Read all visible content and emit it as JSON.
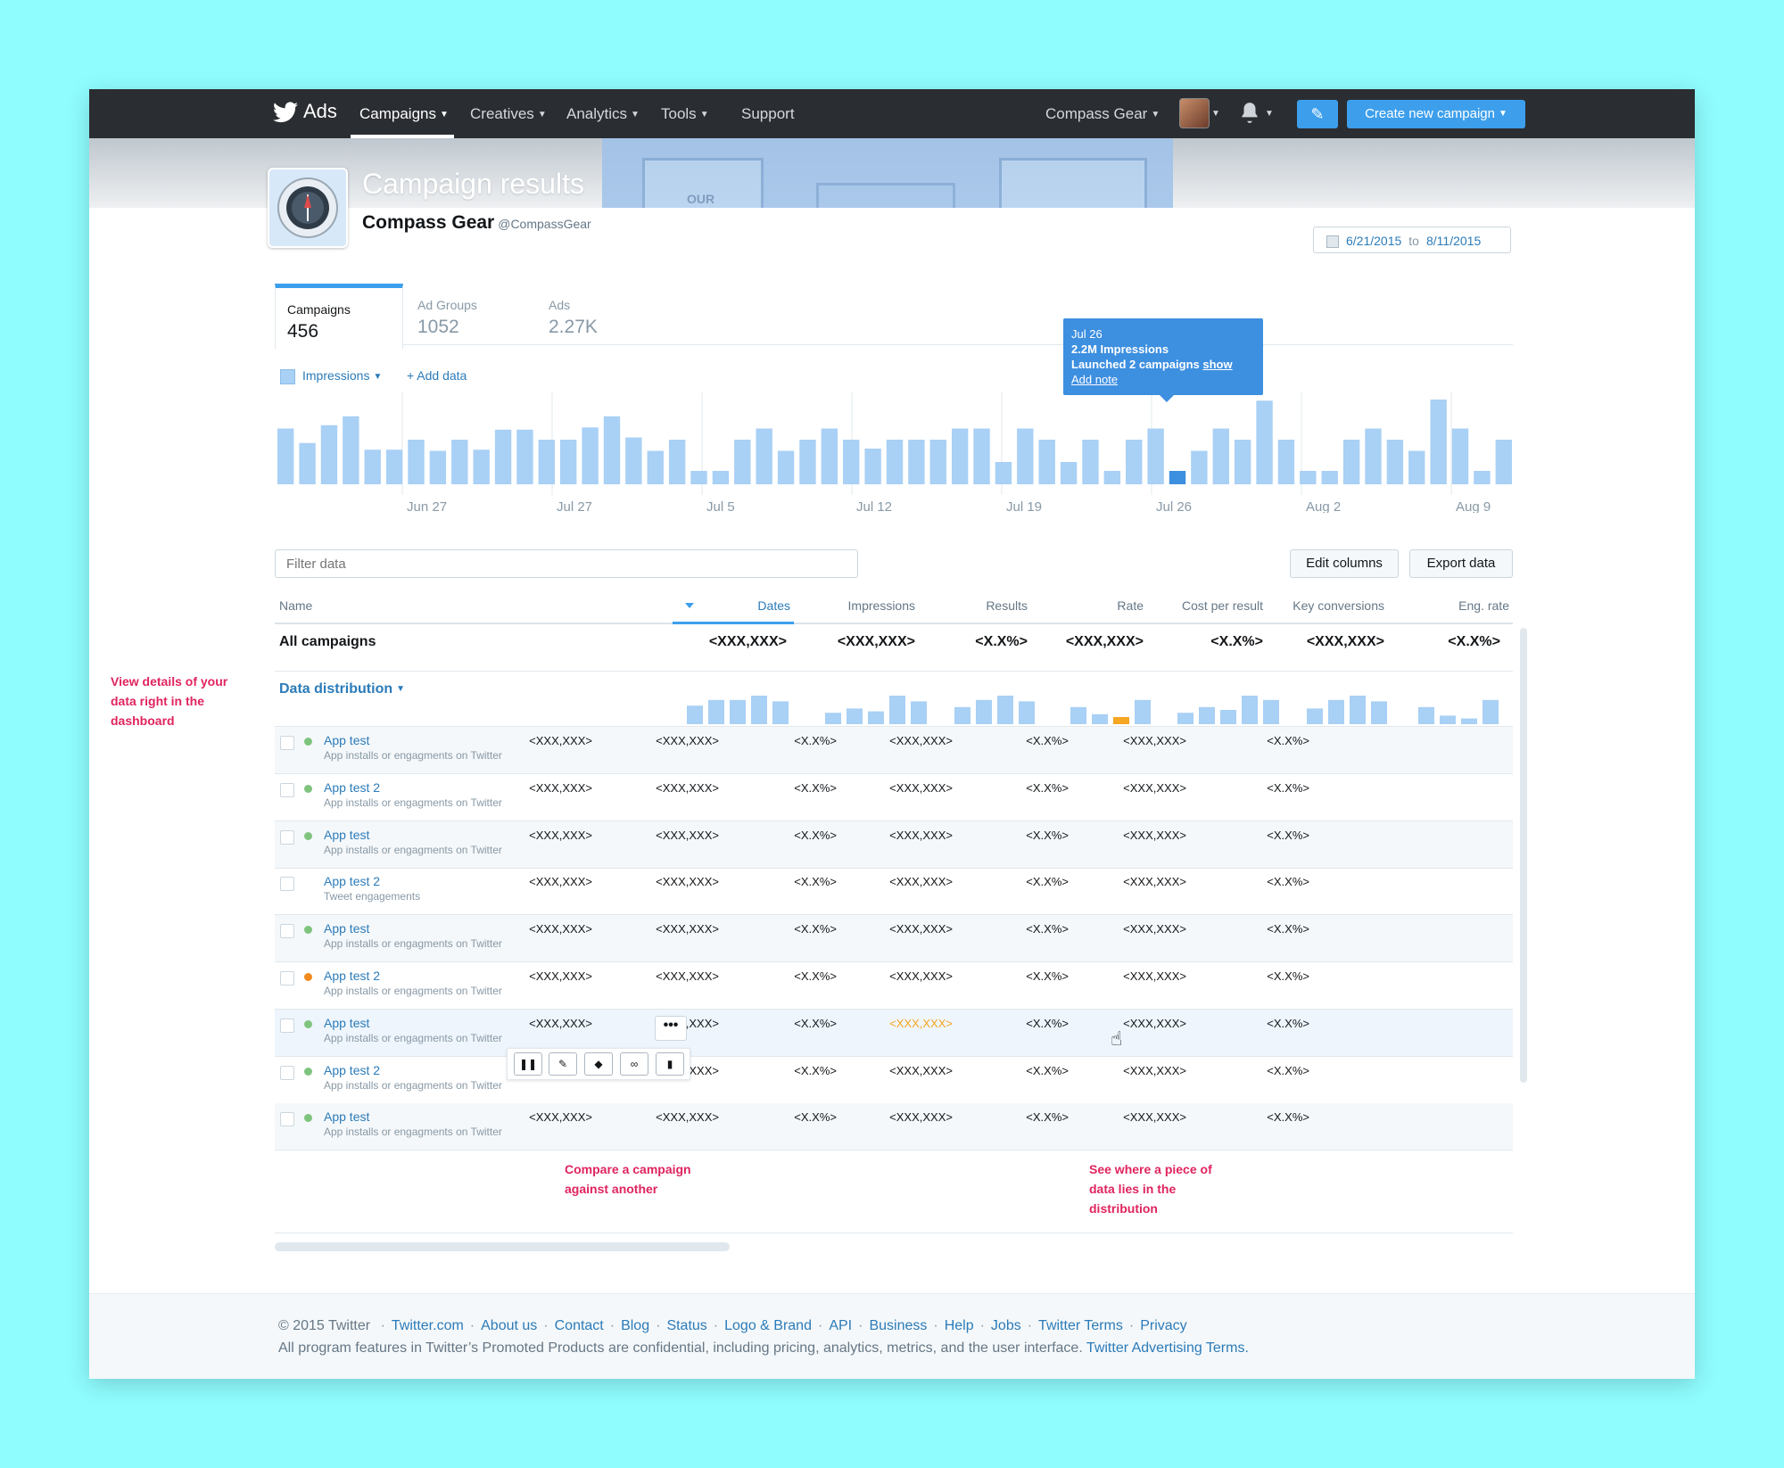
{
  "nav": {
    "brand": "Ads",
    "items": [
      "Campaigns",
      "Creatives",
      "Analytics",
      "Tools",
      "Support"
    ],
    "account": "Compass Gear",
    "create_button": "Create new campaign"
  },
  "header": {
    "title": "Campaign results",
    "account_name": "Compass Gear",
    "account_handle": "@CompassGear",
    "date_from": "6/21/2015",
    "date_to_word": "to",
    "date_to": "8/11/2015"
  },
  "tabs": [
    {
      "label": "Campaigns",
      "count": "456"
    },
    {
      "label": "Ad Groups",
      "count": "1052"
    },
    {
      "label": "Ads",
      "count": "2.27K"
    }
  ],
  "metric": {
    "selected": "Impressions",
    "add_data": "+ Add data"
  },
  "tooltip": {
    "date": "Jul 26",
    "impressions": "2.2M Impressions",
    "launched": "Launched 2 campaigns",
    "show": "show",
    "add_note": "Add note"
  },
  "chart_data": {
    "type": "bar",
    "series": [
      {
        "values": [
          50,
          37,
          53,
          61,
          31,
          31,
          40,
          30,
          40,
          31,
          49,
          49,
          40,
          40,
          51,
          61,
          42,
          30,
          40,
          12,
          12,
          40,
          50,
          30,
          40,
          50,
          40,
          32,
          40,
          40,
          40,
          50,
          50,
          20,
          50,
          40,
          20,
          40,
          12,
          40,
          50,
          12,
          30,
          50,
          40,
          75,
          40,
          12,
          12,
          40,
          50,
          40,
          30,
          76,
          50,
          12,
          40
        ]
      }
    ],
    "highlight_index": 41,
    "x_tick_labels": [
      "Jun 27",
      "Jul 27",
      "Jul 5",
      "Jul 12",
      "Jul 19",
      "Jul 26",
      "Aug 2",
      "Aug 9"
    ]
  },
  "filter": {
    "placeholder": "Filter data"
  },
  "buttons": {
    "edit_columns": "Edit columns",
    "export_data": "Export data"
  },
  "table": {
    "columns": [
      "Name",
      "Dates",
      "Impressions",
      "Results",
      "Rate",
      "Cost per result",
      "Key conversions",
      "Eng. rate"
    ],
    "all_row": {
      "name": "All campaigns",
      "values": [
        "<XXX,XXX>",
        "<XXX,XXX>",
        "<X.X%>",
        "<XXX,XXX>",
        "<X.X%>",
        "<XXX,XXX>",
        "<X.X%>"
      ]
    },
    "distribution_label": "Data distribution",
    "distribution": [
      [
        65,
        85,
        85,
        100,
        80
      ],
      [
        40,
        55,
        45,
        100,
        80
      ],
      [
        60,
        85,
        100,
        80
      ],
      [
        60,
        35,
        25,
        85
      ],
      [
        40,
        60,
        50,
        100,
        85
      ],
      [
        55,
        85,
        100,
        80
      ],
      [
        60,
        30,
        20,
        85
      ]
    ],
    "rows": [
      {
        "name": "App test",
        "sub": "App installs or engagments on Twitter",
        "status": "green",
        "values": [
          "<XXX,XXX>",
          "<XXX,XXX>",
          "<X.X%>",
          "<XXX,XXX>",
          "<X.X%>",
          "<XXX,XXX>",
          "<X.X%>"
        ]
      },
      {
        "name": "App test 2",
        "sub": "App installs or engagments on Twitter",
        "status": "green",
        "values": [
          "<XXX,XXX>",
          "<XXX,XXX>",
          "<X.X%>",
          "<XXX,XXX>",
          "<X.X%>",
          "<XXX,XXX>",
          "<X.X%>"
        ]
      },
      {
        "name": "App test",
        "sub": "App installs or engagments on Twitter",
        "status": "green",
        "values": [
          "<XXX,XXX>",
          "<XXX,XXX>",
          "<X.X%>",
          "<XXX,XXX>",
          "<X.X%>",
          "<XXX,XXX>",
          "<X.X%>"
        ]
      },
      {
        "name": "App test 2",
        "sub": "Tweet engagements",
        "status": "none",
        "values": [
          "<XXX,XXX>",
          "<XXX,XXX>",
          "<X.X%>",
          "<XXX,XXX>",
          "<X.X%>",
          "<XXX,XXX>",
          "<X.X%>"
        ]
      },
      {
        "name": "App test",
        "sub": "App installs or engagments on Twitter",
        "status": "green",
        "values": [
          "<XXX,XXX>",
          "<XXX,XXX>",
          "<X.X%>",
          "<XXX,XXX>",
          "<X.X%>",
          "<XXX,XXX>",
          "<X.X%>"
        ]
      },
      {
        "name": "App test 2",
        "sub": "App installs or engagments on Twitter",
        "status": "orange",
        "values": [
          "<XXX,XXX>",
          "<XXX,XXX>",
          "<X.X%>",
          "<XXX,XXX>",
          "<X.X%>",
          "<XXX,XXX>",
          "<X.X%>"
        ]
      },
      {
        "name": "App test",
        "sub": "App installs or engagments on Twitter",
        "status": "green",
        "values": [
          "<XXX,XXX>",
          "<XXX,XXX>",
          "<X.X%>",
          "<XXX,XXX>",
          "<X.X%>",
          "<XXX,XXX>",
          "<X.X%>"
        ]
      },
      {
        "name": "App test 2",
        "sub": "App installs or engagments on Twitter",
        "status": "green",
        "values": [
          "<XXX,XXX>",
          "<XXX,XXX>",
          "<X.X%>",
          "<XXX,XXX>",
          "<X.X%>",
          "<XXX,XXX>",
          "<X.X%>"
        ]
      },
      {
        "name": "App test",
        "sub": "App installs or engagments on Twitter",
        "status": "green",
        "values": [
          "<XXX,XXX>",
          "<XXX,XXX>",
          "<X.X%>",
          "<XXX,XXX>",
          "<X.X%>",
          "<XXX,XXX>",
          "<X.X%>"
        ]
      }
    ],
    "more_label": "•••"
  },
  "notes": {
    "view_details": [
      "View details of your",
      "data right in the",
      "dashboard"
    ],
    "compare": [
      "Compare a campaign",
      "against another"
    ],
    "see_where": [
      "See where a piece of",
      "data lies in the",
      "distribution"
    ]
  },
  "footer": {
    "copyright": "© 2015 Twitter",
    "links": [
      "Twitter.com",
      "About us",
      "Contact",
      "Blog",
      "Status",
      "Logo & Brand",
      "API",
      "Business",
      "Help",
      "Jobs",
      "Twitter Terms",
      "Privacy"
    ],
    "legal": "All program features in Twitter’s Promoted Products are confidential, including pricing, analytics, metrics, and the user interface.",
    "legal_link": "Twitter Advertising Terms."
  },
  "colors": {
    "nav_bg": "#2a2d31",
    "accent": "#3d9fec",
    "bar": "#a9d0f5",
    "bar_highlight": "#3d8fe0",
    "distribution_highlight": "#f5a623",
    "annotation": "#e0245e",
    "page_bg": "#8ffcfe"
  }
}
